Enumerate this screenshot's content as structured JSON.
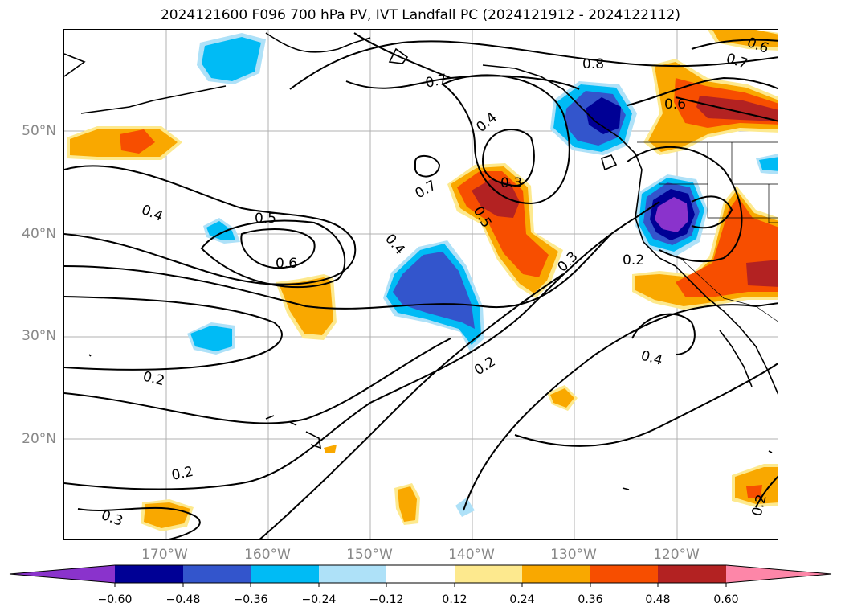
{
  "title": "2024121600 F096 700 hPa PV, IVT Landfall PC (2024121912 - 2024122112)",
  "map": {
    "lon_range": [
      -180,
      -110
    ],
    "lat_range": [
      10,
      60
    ],
    "lat_labels": [
      "50°N",
      "40°N",
      "30°N",
      "20°N"
    ],
    "lon_labels": [
      "170°W",
      "160°W",
      "150°W",
      "140°W",
      "130°W",
      "120°W"
    ],
    "contour_labels": [
      "0.8",
      "0.7",
      "0.6",
      "0.7",
      "0.4",
      "0.3",
      "0.7",
      "0.5",
      "0.4",
      "0.5",
      "0.6",
      "0.4",
      "0.3",
      "0.2",
      "0.4",
      "0.2",
      "0.2",
      "0.2",
      "0.3",
      "0.2",
      "0.6"
    ],
    "colors": {
      "c_lt_-060": "#8a33cc",
      "c_-060_-048": "#000095",
      "c_-048_-036": "#3355cc",
      "c_-036_-024": "#00bbf5",
      "c_-024_-012": "#aee1f8",
      "c_-012_012": "#ffffff",
      "c_012_024": "#fde98e",
      "c_024_036": "#f9a800",
      "c_036_048": "#f74e00",
      "c_048_060": "#b32222",
      "c_gt_060": "#fd86a8"
    }
  },
  "colorbar": {
    "ticks": [
      "−0.60",
      "−0.48",
      "−0.36",
      "−0.24",
      "−0.12",
      "0.12",
      "0.24",
      "0.36",
      "0.48",
      "0.60"
    ],
    "colors": [
      "#8a33cc",
      "#000095",
      "#3355cc",
      "#00bbf5",
      "#aee1f8",
      "#ffffff",
      "#fde98e",
      "#f9a800",
      "#f74e00",
      "#b32222",
      "#fd86a8"
    ]
  }
}
